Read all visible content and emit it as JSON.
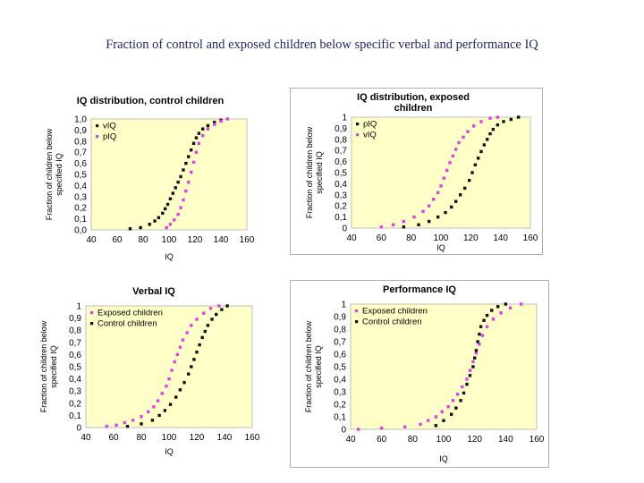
{
  "page": {
    "title": "Fraction of control and exposed children below specific verbal and performance IQ"
  },
  "colors": {
    "plot_bg": "#ffffc8",
    "control": "#111111",
    "exposed": "#e040e0",
    "frame": "#b0b0b0"
  },
  "chart_data": [
    {
      "type": "scatter",
      "title": "IQ distribution, control children",
      "title_lines": [
        "IQ distribution, control children"
      ],
      "xlabel": "IQ",
      "ylabel": "Fraction of children below specified IQ",
      "xlim": [
        40,
        160
      ],
      "ylim": [
        0,
        1
      ],
      "xticks": [
        "40",
        "60",
        "80",
        "100",
        "120",
        "140",
        "160"
      ],
      "yticks": [
        "0,0",
        "0,1",
        "0,2",
        "0,3",
        "0,4",
        "0,5",
        "0,6",
        "0,7",
        "0,8",
        "0,9",
        "1,0"
      ],
      "legend": "top-left",
      "series": [
        {
          "name": "vIQ",
          "color": "#111111",
          "x": [
            70,
            78,
            85,
            89,
            92,
            95,
            97,
            99,
            101,
            103,
            105,
            107,
            109,
            111,
            113,
            115,
            117,
            119,
            121,
            123,
            126,
            130,
            135,
            140
          ],
          "y": [
            0.01,
            0.02,
            0.05,
            0.08,
            0.11,
            0.15,
            0.19,
            0.23,
            0.28,
            0.33,
            0.38,
            0.43,
            0.48,
            0.54,
            0.6,
            0.66,
            0.72,
            0.78,
            0.83,
            0.87,
            0.91,
            0.94,
            0.97,
            0.99
          ]
        },
        {
          "name": "pIQ",
          "color": "#e040e0",
          "x": [
            98,
            101,
            104,
            107,
            109,
            111,
            113,
            115,
            117,
            119,
            121,
            123,
            126,
            130,
            135,
            140,
            145
          ],
          "y": [
            0.02,
            0.05,
            0.09,
            0.14,
            0.2,
            0.27,
            0.35,
            0.43,
            0.52,
            0.61,
            0.7,
            0.78,
            0.85,
            0.91,
            0.95,
            0.98,
            1.0
          ]
        }
      ]
    },
    {
      "type": "scatter",
      "title": "IQ distribution, exposed children",
      "title_lines": [
        "IQ distribution, exposed",
        "children"
      ],
      "xlabel": "IQ",
      "ylabel": "Fraction of children below specified IQ",
      "xlim": [
        40,
        160
      ],
      "ylim": [
        0,
        1
      ],
      "xticks": [
        "40",
        "60",
        "80",
        "100",
        "120",
        "140",
        "160"
      ],
      "yticks": [
        "0",
        "0,1",
        "0,2",
        "0,3",
        "0,4",
        "0,5",
        "0,6",
        "0,7",
        "0,8",
        "0,9",
        "1"
      ],
      "legend": "top-left",
      "series": [
        {
          "name": "pIQ",
          "color": "#111111",
          "x": [
            75,
            85,
            92,
            98,
            103,
            107,
            110,
            113,
            116,
            119,
            121,
            123,
            125,
            127,
            129,
            131,
            133,
            135,
            138,
            142,
            147,
            152
          ],
          "y": [
            0.01,
            0.03,
            0.06,
            0.1,
            0.14,
            0.19,
            0.24,
            0.3,
            0.36,
            0.43,
            0.5,
            0.57,
            0.63,
            0.69,
            0.75,
            0.8,
            0.85,
            0.89,
            0.93,
            0.96,
            0.98,
            1.0
          ]
        },
        {
          "name": "vIQ",
          "color": "#e040e0",
          "x": [
            60,
            68,
            75,
            82,
            88,
            92,
            95,
            98,
            100,
            102,
            104,
            106,
            108,
            110,
            112,
            115,
            118,
            122,
            127,
            133,
            138
          ],
          "y": [
            0.01,
            0.03,
            0.06,
            0.1,
            0.15,
            0.2,
            0.26,
            0.32,
            0.38,
            0.45,
            0.52,
            0.59,
            0.65,
            0.71,
            0.77,
            0.82,
            0.87,
            0.92,
            0.96,
            0.99,
            1.0
          ]
        }
      ]
    },
    {
      "type": "scatter",
      "title": "Verbal IQ",
      "title_lines": [
        "Verbal IQ"
      ],
      "xlabel": "IQ",
      "ylabel": "Fraction of children below specified IQ",
      "xlim": [
        40,
        160
      ],
      "ylim": [
        0,
        1
      ],
      "xticks": [
        "40",
        "60",
        "80",
        "100",
        "120",
        "140",
        "160"
      ],
      "yticks": [
        "0",
        "0,1",
        "0,2",
        "0,3",
        "0,4",
        "0,5",
        "0,6",
        "0,7",
        "0,8",
        "0,9",
        "1"
      ],
      "legend": "top-left",
      "series": [
        {
          "name": "Exposed children",
          "color": "#e040e0",
          "x": [
            55,
            62,
            68,
            74,
            80,
            85,
            89,
            92,
            95,
            98,
            100,
            102,
            104,
            106,
            108,
            110,
            113,
            116,
            120,
            125,
            130,
            136
          ],
          "y": [
            0.01,
            0.02,
            0.04,
            0.06,
            0.09,
            0.13,
            0.17,
            0.22,
            0.28,
            0.34,
            0.4,
            0.47,
            0.54,
            0.6,
            0.66,
            0.72,
            0.78,
            0.84,
            0.89,
            0.94,
            0.98,
            1.0
          ]
        },
        {
          "name": "Control children",
          "color": "#111111",
          "x": [
            70,
            80,
            88,
            93,
            97,
            101,
            105,
            108,
            111,
            114,
            116,
            118,
            120,
            122,
            124,
            126,
            128,
            131,
            134,
            138,
            142
          ],
          "y": [
            0.01,
            0.03,
            0.06,
            0.1,
            0.14,
            0.19,
            0.25,
            0.31,
            0.37,
            0.44,
            0.5,
            0.56,
            0.62,
            0.68,
            0.74,
            0.79,
            0.84,
            0.89,
            0.93,
            0.97,
            1.0
          ]
        }
      ]
    },
    {
      "type": "scatter",
      "title": "Performance IQ",
      "title_lines": [
        "Performance IQ"
      ],
      "xlabel": "IQ",
      "ylabel": "Fraction of children below specified IQ",
      "xlim": [
        40,
        160
      ],
      "ylim": [
        0,
        1
      ],
      "xticks": [
        "40",
        "60",
        "80",
        "100",
        "120",
        "140",
        "160"
      ],
      "yticks": [
        "0",
        "0,1",
        "0,2",
        "0,3",
        "0,4",
        "0,5",
        "0,6",
        "0,7",
        "0,8",
        "0,9",
        "1"
      ],
      "legend": "top-left",
      "series": [
        {
          "name": "Exposed children",
          "color": "#e040e0",
          "x": [
            45,
            60,
            75,
            85,
            90,
            95,
            99,
            103,
            106,
            109,
            112,
            115,
            117,
            119,
            121,
            123,
            125,
            128,
            132,
            137,
            143,
            150
          ],
          "y": [
            0.0,
            0.01,
            0.02,
            0.04,
            0.07,
            0.1,
            0.14,
            0.18,
            0.23,
            0.28,
            0.34,
            0.4,
            0.47,
            0.54,
            0.61,
            0.68,
            0.75,
            0.82,
            0.88,
            0.93,
            0.97,
            1.0
          ]
        },
        {
          "name": "Control children",
          "color": "#111111",
          "x": [
            95,
            100,
            105,
            108,
            111,
            113,
            115,
            117,
            119,
            120,
            121,
            122,
            123,
            124,
            126,
            128,
            131,
            135,
            140
          ],
          "y": [
            0.03,
            0.07,
            0.12,
            0.17,
            0.23,
            0.29,
            0.36,
            0.43,
            0.5,
            0.57,
            0.63,
            0.7,
            0.76,
            0.82,
            0.87,
            0.91,
            0.95,
            0.98,
            1.0
          ]
        }
      ]
    }
  ]
}
